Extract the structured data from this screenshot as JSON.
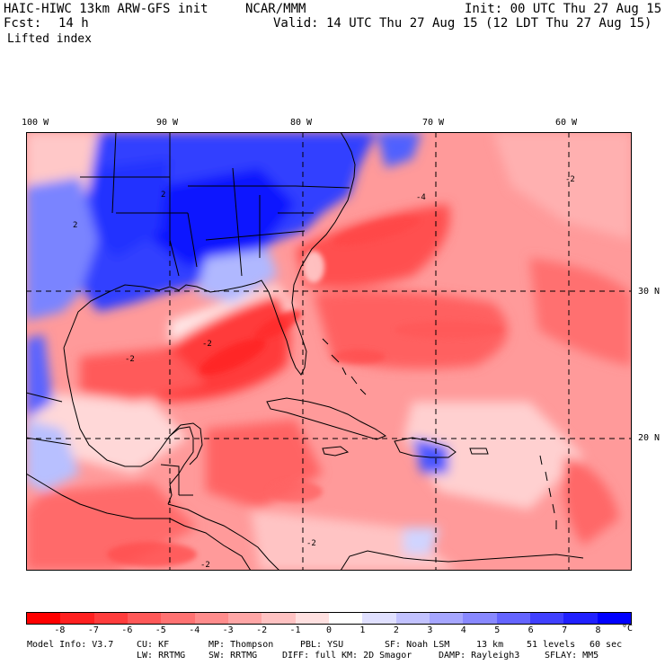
{
  "header": {
    "model": "HAIC-HIWC 13km ARW-GFS init",
    "org": "NCAR/MMM",
    "init": "Init: 00 UTC Thu 27 Aug 15",
    "fcst_label": "Fcst:",
    "fcst_value": "14 h",
    "valid": "Valid: 14 UTC Thu 27 Aug 15 (12 LDT Thu 27 Aug 15)",
    "field": "Lifted index"
  },
  "map": {
    "longitude_labels": [
      "100 W",
      "90 W",
      "80 W",
      "70 W",
      "60 W"
    ],
    "latitude_labels": [
      "30 N",
      "20 N"
    ],
    "contour_labels": [
      "-2",
      "-2",
      "-2",
      "-2",
      "-4",
      "2",
      "2",
      "-2"
    ],
    "land_color": "#000000"
  },
  "colorbar": {
    "ticks": [
      "-8",
      "-7",
      "-6",
      "-5",
      "-4",
      "-3",
      "-2",
      "-1",
      "0",
      "1",
      "2",
      "3",
      "4",
      "5",
      "6",
      "7",
      "8"
    ],
    "unit": "°C",
    "colors": [
      "#ff0000",
      "#ff2020",
      "#ff3c3c",
      "#ff5858",
      "#ff7272",
      "#ff8c8c",
      "#ffa6a6",
      "#ffc2c2",
      "#ffe0e0",
      "#ffffff",
      "#e0e0ff",
      "#c2c2ff",
      "#a6a6ff",
      "#8888ff",
      "#6464ff",
      "#4040ff",
      "#2020ff",
      "#0000ff"
    ]
  },
  "footer": {
    "line1": [
      "Model Info: V3.7",
      "CU: KF",
      "MP: Thompson",
      "PBL: YSU",
      "SF: Noah LSM",
      "13 km",
      "51 levels",
      "60 sec"
    ],
    "line2": [
      "LW: RRTMG",
      "SW: RRTMG",
      "DIFF: full",
      "KM: 2D Smagor",
      "DAMP: Rayleigh3",
      "SFLAY: MM5"
    ]
  }
}
